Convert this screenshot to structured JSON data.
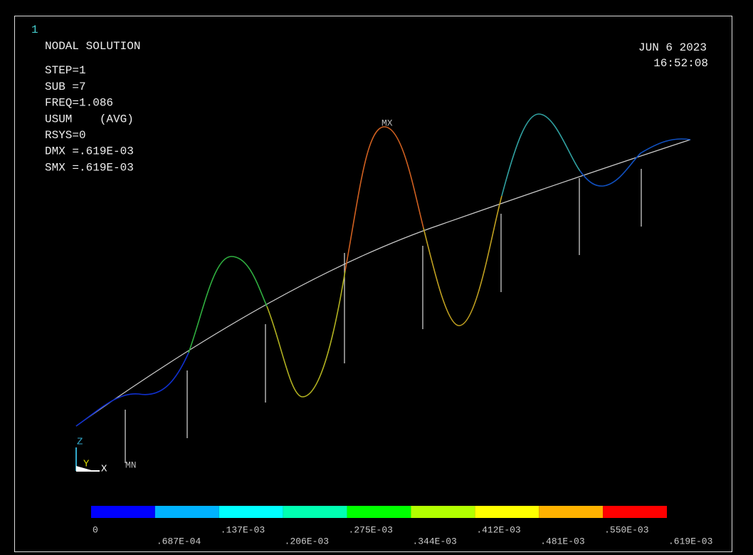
{
  "window_number": "1",
  "header": {
    "title": "NODAL SOLUTION",
    "lines": [
      "STEP=1",
      "SUB =7",
      "FREQ=1.086",
      "USUM    (AVG)",
      "RSYS=0",
      "DMX =.619E-03",
      "SMX =.619E-03"
    ]
  },
  "timestamp": {
    "date": "JUN  6 2023",
    "time": "16:52:08"
  },
  "markers": {
    "max": "MX",
    "min": "MN"
  },
  "triad": {
    "z": "Z",
    "y": "Y",
    "x": "X"
  },
  "legend": {
    "colors": [
      "#0000ff",
      "#00b2ff",
      "#00ffff",
      "#00ffb2",
      "#00ff00",
      "#b2ff00",
      "#ffff00",
      "#ffb200",
      "#ff0000"
    ],
    "labels": [
      "0",
      ".687E-04",
      ".137E-03",
      ".206E-03",
      ".275E-03",
      ".344E-03",
      ".412E-03",
      ".481E-03",
      ".550E-03",
      ".619E-03"
    ]
  }
}
